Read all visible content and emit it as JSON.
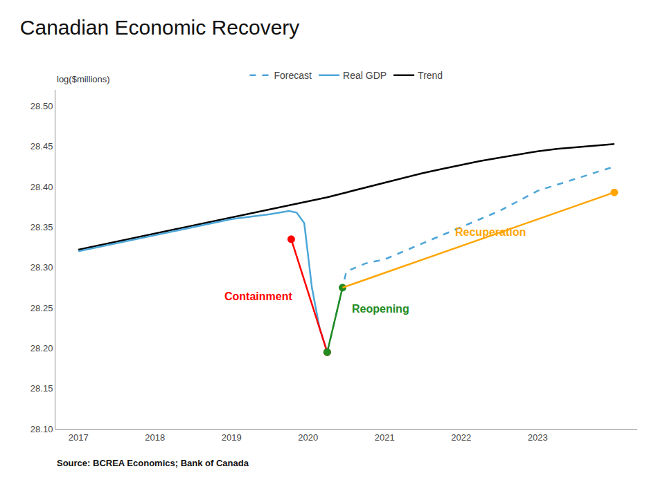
{
  "chart_data": {
    "type": "line",
    "title": "Canadian Economic Recovery",
    "ylabel": "log($millions)",
    "source": "Source: BCREA Economics; Bank of Canada",
    "xlim": [
      2016.7,
      2024.3
    ],
    "xticks": [
      2017,
      2018,
      2019,
      2020,
      2021,
      2022,
      2023
    ],
    "ylim": [
      28.1,
      28.52
    ],
    "yticks": [
      {
        "value": 28.1,
        "label": "28.10"
      },
      28.15,
      {
        "value": 28.2,
        "label": "28.20"
      },
      28.25,
      {
        "value": 28.3,
        "label": "28.30"
      },
      28.35,
      {
        "value": 28.4,
        "label": "28.40"
      },
      28.45,
      {
        "value": 28.5,
        "label": "28.50"
      }
    ],
    "grid": false,
    "legend": "top",
    "series": [
      {
        "name": "Trend",
        "type": "line",
        "color": "#000000",
        "line_style": "solid",
        "x": [
          2017.0,
          2017.25,
          2017.5,
          2017.75,
          2018.0,
          2018.25,
          2018.5,
          2018.75,
          2019.0,
          2019.25,
          2019.5,
          2019.75,
          2020.0,
          2020.25,
          2020.5,
          2020.75,
          2021.0,
          2021.25,
          2021.5,
          2021.75,
          2022.0,
          2022.25,
          2022.5,
          2022.75,
          2023.0,
          2023.25,
          2023.5,
          2023.75,
          2024.0
        ],
        "y": [
          28.322,
          28.327,
          28.332,
          28.337,
          28.342,
          28.347,
          28.352,
          28.357,
          28.362,
          28.367,
          28.372,
          28.377,
          28.382,
          28.387,
          28.393,
          28.399,
          28.405,
          28.411,
          28.417,
          28.422,
          28.427,
          28.432,
          28.436,
          28.44,
          28.444,
          28.447,
          28.449,
          28.451,
          28.453
        ]
      },
      {
        "name": "Real GDP",
        "type": "line",
        "color": "#4da6d8",
        "line_style": "solid",
        "x": [
          2017.0,
          2017.25,
          2017.5,
          2017.75,
          2018.0,
          2018.25,
          2018.5,
          2018.75,
          2019.0,
          2019.25,
          2019.5,
          2019.75,
          2019.85,
          2019.95,
          2020.05,
          2020.15,
          2020.25
        ],
        "y": [
          28.32,
          28.325,
          28.33,
          28.335,
          28.34,
          28.345,
          28.35,
          28.355,
          28.36,
          28.363,
          28.366,
          28.37,
          28.368,
          28.355,
          28.275,
          28.225,
          28.195
        ]
      },
      {
        "name": "Forecast",
        "type": "line",
        "color": "#4da6d8",
        "line_style": "dashed",
        "x": [
          2020.25,
          2020.5,
          2020.75,
          2021.0,
          2021.5,
          2022.0,
          2022.5,
          2023.0,
          2023.5,
          2024.0
        ],
        "y": [
          28.195,
          28.295,
          28.305,
          28.31,
          28.33,
          28.35,
          28.37,
          28.395,
          28.41,
          28.425
        ]
      },
      {
        "type": "line",
        "color": "#ff0000",
        "line_style": "solid",
        "marker": "circle",
        "x": [
          2019.78,
          2020.25
        ],
        "y": [
          28.335,
          28.195
        ]
      },
      {
        "type": "line",
        "color": "#228b22",
        "line_style": "solid",
        "marker": "circle",
        "x": [
          2020.25,
          2020.45
        ],
        "y": [
          28.195,
          28.275
        ]
      },
      {
        "type": "line",
        "color": "#ffa500",
        "line_style": "solid",
        "x": [
          2020.45,
          2024.0
        ],
        "y": [
          28.275,
          28.393
        ]
      },
      {
        "type": "scatter",
        "color": "#ffa500",
        "marker": "circle",
        "x": [
          2024.0
        ],
        "y": [
          28.393
        ]
      }
    ],
    "annotations": [
      {
        "text": "Containment",
        "x": 2019.35,
        "y": 28.255,
        "color": "#ff0000",
        "align": "center"
      },
      {
        "text": "Reopening",
        "x": 2020.55,
        "y": 28.24,
        "color": "#228b22",
        "align": "left"
      },
      {
        "text": "Recuperation",
        "x": 2021.9,
        "y": 28.335,
        "color": "#ffa500",
        "align": "left"
      }
    ]
  }
}
